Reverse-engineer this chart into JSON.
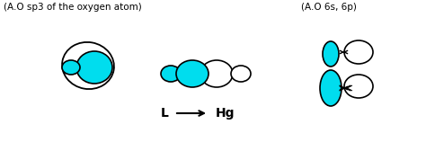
{
  "bg_color": "#ffffff",
  "cyan_color": "#00ddee",
  "black_color": "#000000",
  "title_left": "(A.O sp3 of the oxygen atom)",
  "title_right": "(A.O 6s, 6p)",
  "label_L": "L",
  "label_Hg": "Hg",
  "fig_width": 4.74,
  "fig_height": 1.58,
  "dpi": 100
}
